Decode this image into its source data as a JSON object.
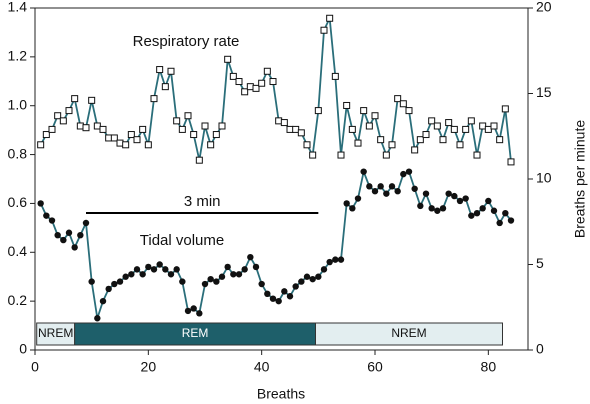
{
  "chart_data": {
    "type": "line",
    "x_label": "Breaths",
    "y2_label": "Breaths per minute",
    "xlim": [
      0,
      87
    ],
    "xticks": [
      0,
      20,
      40,
      60,
      80
    ],
    "ylim": [
      0,
      1.4
    ],
    "yticks": [
      0,
      0.2,
      0.4,
      0.6,
      0.8,
      {
        "value": 1,
        "label": "1.0"
      },
      1.2,
      1.4
    ],
    "y2lim": [
      0,
      20
    ],
    "y2ticks": [
      0,
      5,
      10,
      15,
      20
    ],
    "x": [
      1,
      2,
      3,
      4,
      5,
      6,
      7,
      8,
      9,
      10,
      11,
      12,
      13,
      14,
      15,
      16,
      17,
      18,
      19,
      20,
      21,
      22,
      23,
      24,
      25,
      26,
      27,
      28,
      29,
      30,
      31,
      32,
      33,
      34,
      35,
      36,
      37,
      38,
      39,
      40,
      41,
      42,
      43,
      44,
      45,
      46,
      47,
      48,
      49,
      50,
      51,
      52,
      53,
      54,
      55,
      56,
      57,
      58,
      59,
      60,
      61,
      62,
      63,
      64,
      65,
      66,
      67,
      68,
      69,
      70,
      71,
      72,
      73,
      74,
      75,
      76,
      77,
      78,
      79,
      80,
      81,
      82,
      83,
      84
    ],
    "series": [
      {
        "name": "Respiratory rate",
        "axis": "y2",
        "color": "#2a6e7a",
        "marker": "square",
        "values": [
          12.0,
          12.6,
          12.9,
          13.7,
          13.4,
          14.0,
          14.7,
          13.1,
          13.0,
          14.6,
          13.1,
          12.9,
          12.4,
          12.4,
          12.1,
          12.0,
          12.6,
          12.3,
          12.9,
          12.0,
          14.7,
          16.4,
          15.4,
          16.3,
          13.4,
          12.9,
          13.7,
          12.6,
          11.1,
          13.1,
          12.0,
          12.6,
          13.1,
          17.0,
          16.0,
          15.7,
          15.1,
          15.4,
          15.3,
          15.6,
          16.3,
          15.7,
          13.4,
          13.3,
          12.9,
          12.9,
          12.7,
          12.0,
          11.4,
          14.0,
          18.7,
          19.4,
          16.0,
          11.4,
          14.3,
          12.9,
          12.1,
          14.0,
          13.1,
          13.7,
          12.3,
          11.4,
          12.0,
          14.7,
          14.4,
          14.0,
          11.7,
          12.3,
          12.6,
          13.4,
          13.1,
          12.3,
          13.3,
          12.9,
          12.0,
          12.9,
          13.4,
          11.4,
          13.1,
          12.9,
          13.1,
          12.3,
          14.1,
          11.0
        ]
      },
      {
        "name": "Tidal volume",
        "color": "#2a6e7a",
        "marker": "circle",
        "values": [
          0.6,
          0.55,
          0.53,
          0.47,
          0.45,
          0.48,
          0.42,
          0.47,
          0.52,
          0.28,
          0.13,
          0.2,
          0.25,
          0.27,
          0.28,
          0.3,
          0.31,
          0.33,
          0.31,
          0.34,
          0.33,
          0.35,
          0.33,
          0.31,
          0.33,
          0.28,
          0.16,
          0.17,
          0.15,
          0.27,
          0.29,
          0.28,
          0.3,
          0.34,
          0.31,
          0.31,
          0.33,
          0.38,
          0.34,
          0.27,
          0.23,
          0.21,
          0.2,
          0.24,
          0.22,
          0.26,
          0.28,
          0.3,
          0.29,
          0.3,
          0.33,
          0.36,
          0.37,
          0.37,
          0.6,
          0.58,
          0.62,
          0.73,
          0.67,
          0.65,
          0.67,
          0.64,
          0.67,
          0.65,
          0.72,
          0.73,
          0.66,
          0.59,
          0.64,
          0.58,
          0.57,
          0.58,
          0.64,
          0.63,
          0.61,
          0.62,
          0.55,
          0.56,
          0.58,
          0.61,
          0.57,
          0.52,
          0.56,
          0.53
        ]
      }
    ],
    "span": {
      "label": "3 min",
      "start": 9,
      "end": 50
    },
    "stages": [
      {
        "label": "NREM",
        "start": 0.3,
        "end": 7,
        "color": "#e3eef0"
      },
      {
        "label": "REM",
        "start": 7,
        "end": 49.5,
        "color": "#1e5f6a"
      },
      {
        "label": "NREM",
        "start": 49.5,
        "end": 82.5,
        "color": "#e3eef0"
      }
    ]
  }
}
